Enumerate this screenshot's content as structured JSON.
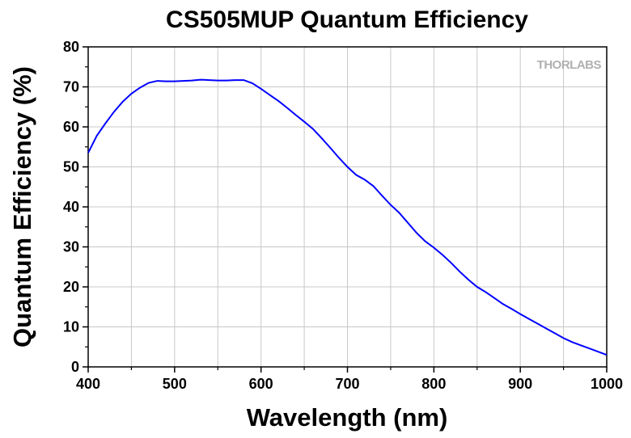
{
  "chart_data": {
    "type": "line",
    "title": "CS505MUP Quantum Efficiency",
    "xlabel": "Wavelength (nm)",
    "ylabel": "Quantum Efficiency (%)",
    "xlim": [
      400,
      1000
    ],
    "ylim": [
      0,
      80
    ],
    "x_ticks": [
      400,
      500,
      600,
      700,
      800,
      900,
      1000
    ],
    "y_ticks": [
      0,
      10,
      20,
      30,
      40,
      50,
      60,
      70,
      80
    ],
    "grid": true,
    "legend": "none",
    "series": [
      {
        "color": "#0000ff",
        "x": [
          400,
          410,
          420,
          430,
          440,
          450,
          460,
          470,
          480,
          490,
          500,
          510,
          520,
          530,
          540,
          550,
          560,
          570,
          580,
          590,
          600,
          610,
          620,
          630,
          640,
          650,
          660,
          670,
          680,
          690,
          700,
          710,
          720,
          730,
          740,
          750,
          760,
          770,
          780,
          790,
          800,
          810,
          820,
          830,
          840,
          850,
          860,
          870,
          880,
          890,
          900,
          910,
          920,
          930,
          940,
          950,
          960,
          970,
          980,
          990,
          1000
        ],
        "y": [
          53.5,
          57.8,
          60.9,
          63.8,
          66.3,
          68.3,
          69.8,
          71.0,
          71.5,
          71.4,
          71.4,
          71.5,
          71.6,
          71.8,
          71.7,
          71.6,
          71.6,
          71.7,
          71.7,
          70.9,
          69.5,
          68.0,
          66.5,
          64.8,
          63.0,
          61.3,
          59.5,
          57.2,
          54.8,
          52.3,
          50.0,
          48.0,
          46.8,
          45.2,
          42.8,
          40.5,
          38.5,
          36.0,
          33.5,
          31.4,
          29.8,
          28.0,
          26.0,
          23.8,
          21.8,
          20.0,
          18.7,
          17.2,
          15.7,
          14.5,
          13.2,
          12.0,
          10.8,
          9.6,
          8.4,
          7.2,
          6.2,
          5.4,
          4.6,
          3.8,
          3.0
        ]
      }
    ],
    "watermark": "THORLABS"
  }
}
